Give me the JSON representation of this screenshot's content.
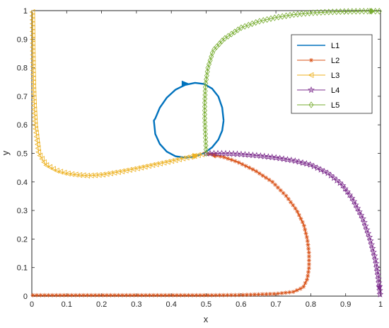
{
  "chart_data": {
    "type": "line",
    "title": "",
    "xlabel": "x",
    "ylabel": "y",
    "xlim": [
      0,
      1
    ],
    "ylim": [
      0,
      1
    ],
    "xticks": [
      "0",
      "0.1",
      "0.2",
      "0.3",
      "0.4",
      "0.5",
      "0.6",
      "0.7",
      "0.8",
      "0.9",
      "1"
    ],
    "yticks": [
      "0",
      "0.1",
      "0.2",
      "0.3",
      "0.4",
      "0.5",
      "0.6",
      "0.7",
      "0.8",
      "0.9",
      "1"
    ],
    "grid": false,
    "legend_position": "top-right",
    "series": [
      {
        "name": "L1",
        "color": "#0072bd",
        "marker": "none",
        "x": [
          0.55,
          0.546,
          0.535,
          0.517,
          0.494,
          0.468,
          0.44,
          0.412,
          0.387,
          0.367,
          0.354,
          0.35,
          0.354,
          0.367,
          0.387,
          0.412,
          0.44,
          0.468,
          0.494,
          0.517,
          0.535,
          0.546,
          0.55
        ],
        "y": [
          0.615,
          0.66,
          0.699,
          0.727,
          0.743,
          0.747,
          0.74,
          0.723,
          0.695,
          0.66,
          0.622,
          0.615,
          0.568,
          0.533,
          0.506,
          0.49,
          0.485,
          0.489,
          0.501,
          0.521,
          0.548,
          0.58,
          0.615
        ]
      },
      {
        "name": "L2",
        "color": "#d95319",
        "marker": "asterisk",
        "x": [
          0.003,
          0.1,
          0.2,
          0.3,
          0.4,
          0.5,
          0.6,
          0.7,
          0.75,
          0.778,
          0.79,
          0.795,
          0.795,
          0.79,
          0.78,
          0.76,
          0.73,
          0.69,
          0.64,
          0.59,
          0.55,
          0.52,
          0.5
        ],
        "y": [
          0.003,
          0.003,
          0.003,
          0.003,
          0.003,
          0.003,
          0.004,
          0.008,
          0.015,
          0.03,
          0.06,
          0.1,
          0.15,
          0.2,
          0.25,
          0.3,
          0.35,
          0.4,
          0.44,
          0.47,
          0.487,
          0.495,
          0.499
        ]
      },
      {
        "name": "L3",
        "color": "#edb120",
        "marker": "triangle-left",
        "x": [
          0.002,
          0.003,
          0.004,
          0.006,
          0.01,
          0.02,
          0.04,
          0.07,
          0.1,
          0.13,
          0.16,
          0.2,
          0.25,
          0.3,
          0.35,
          0.4,
          0.45,
          0.49
        ],
        "y": [
          0.995,
          0.9,
          0.8,
          0.7,
          0.6,
          0.5,
          0.46,
          0.44,
          0.43,
          0.425,
          0.422,
          0.425,
          0.435,
          0.447,
          0.46,
          0.473,
          0.487,
          0.497
        ]
      },
      {
        "name": "L4",
        "color": "#7e2f8e",
        "marker": "pentagram",
        "x": [
          0.5,
          0.55,
          0.6,
          0.65,
          0.7,
          0.75,
          0.8,
          0.85,
          0.89,
          0.92,
          0.95,
          0.97,
          0.985,
          0.993,
          0.997,
          0.999
        ],
        "y": [
          0.5,
          0.5,
          0.497,
          0.492,
          0.485,
          0.475,
          0.46,
          0.43,
          0.39,
          0.34,
          0.27,
          0.2,
          0.13,
          0.07,
          0.03,
          0.003
        ]
      },
      {
        "name": "L5",
        "color": "#77ac30",
        "marker": "diamond",
        "x": [
          0.5,
          0.498,
          0.496,
          0.496,
          0.498,
          0.505,
          0.52,
          0.55,
          0.6,
          0.65,
          0.7,
          0.75,
          0.8,
          0.85,
          0.9,
          0.95,
          0.997
        ],
        "y": [
          0.5,
          0.56,
          0.62,
          0.68,
          0.74,
          0.8,
          0.86,
          0.9,
          0.94,
          0.962,
          0.976,
          0.986,
          0.992,
          0.995,
          0.997,
          0.998,
          0.998
        ]
      }
    ]
  }
}
